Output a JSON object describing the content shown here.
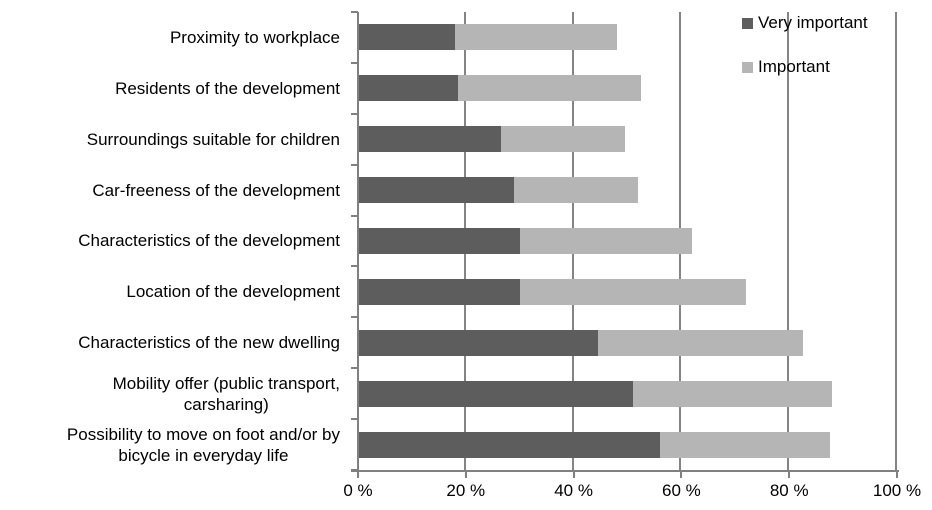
{
  "chart_data": {
    "type": "bar",
    "orientation": "horizontal",
    "stacked": true,
    "title": "",
    "xlabel": "",
    "ylabel": "",
    "grid": true,
    "x_axis": {
      "min": 0,
      "max": 100,
      "tick_step": 20,
      "tick_labels": [
        "0 %",
        "20 %",
        "40 %",
        "60 %",
        "80 %",
        "100 %"
      ]
    },
    "categories": [
      "Proximity to workplace",
      "Residents of the development",
      "Surroundings suitable for children",
      "Car-freeness of the development",
      "Characteristics of the development",
      "Location of the development",
      "Characteristics of the new dwelling",
      "Mobility offer (public transport,\ncarsharing)",
      "Possibility to move on foot and/or by\nbicycle in everyday life"
    ],
    "series": [
      {
        "name": "Very important",
        "color": "#5D5D5D",
        "values": [
          18,
          18.5,
          26.5,
          29,
          30,
          30,
          44.5,
          51,
          56
        ]
      },
      {
        "name": "Important",
        "color": "#B5B5B5",
        "values": [
          30,
          34,
          23,
          23,
          32,
          42,
          38,
          37,
          31.5
        ]
      }
    ],
    "stack_totals": [
      48,
      52.5,
      49.5,
      52,
      62,
      72,
      82.5,
      88,
      87.5
    ],
    "legend": {
      "position": "top-right",
      "entries": [
        "Very important",
        "Important"
      ]
    },
    "colors": {
      "axis": "#808080",
      "gridline": "#848484",
      "text": "#000000",
      "background": "#FFFFFF"
    }
  }
}
